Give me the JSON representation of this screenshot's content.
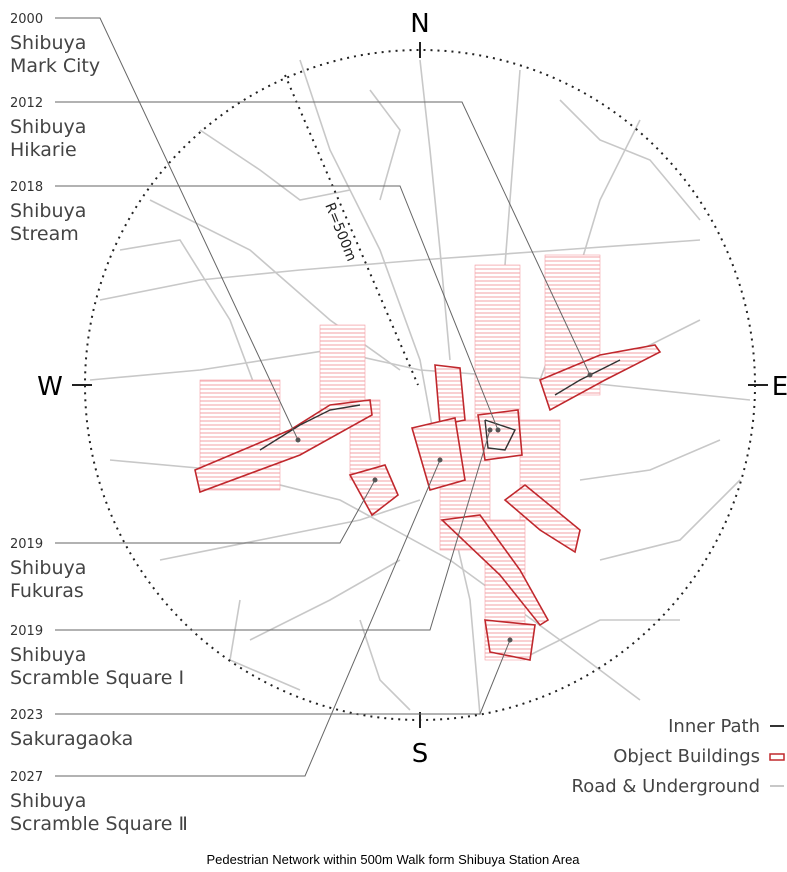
{
  "compass": {
    "north": "N",
    "south": "S",
    "east": "E",
    "west": "W"
  },
  "radius_label": "R=500m",
  "buildings": [
    {
      "year": "2000",
      "name": [
        "Shibuya",
        "Mark City"
      ]
    },
    {
      "year": "2012",
      "name": [
        "Shibuya",
        "Hikarie"
      ]
    },
    {
      "year": "2018",
      "name": [
        "Shibuya",
        "Stream"
      ]
    },
    {
      "year": "2019",
      "name": [
        "Shibuya",
        "Fukuras"
      ]
    },
    {
      "year": "2019",
      "name": [
        "Shibuya",
        "Scramble Square Ⅰ"
      ]
    },
    {
      "year": "2023",
      "name": [
        "Sakuragaoka"
      ]
    },
    {
      "year": "2027",
      "name": [
        "Shibuya",
        "Scramble Square Ⅱ"
      ]
    }
  ],
  "legend": [
    {
      "label": "Inner Path"
    },
    {
      "label": "Object Buildings"
    },
    {
      "label": "Road & Underground"
    }
  ],
  "caption": "Pedestrian Network within 500m Walk form Shibuya Station Area"
}
